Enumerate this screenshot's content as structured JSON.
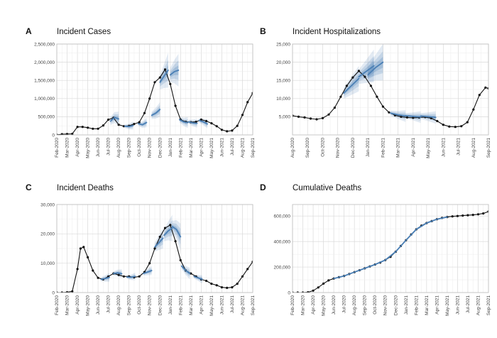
{
  "chart_data": [
    {
      "type": "line",
      "letter": "A",
      "title": "Incident Cases",
      "y_ticks": [
        0,
        500000,
        1000000,
        1500000,
        2000000,
        2500000
      ],
      "y_tick_labels": [
        "0",
        "500,000",
        "1,000,000",
        "1,500,000",
        "2,000,000",
        "2,500,000"
      ],
      "ylim": [
        0,
        2500000
      ],
      "x_tick_labels": [
        "Feb-2020",
        "Mar-2020",
        "Apr-2020",
        "May-2020",
        "Jun-2020",
        "Jul-2020",
        "Aug-2020",
        "Sep-2020",
        "Oct-2020",
        "Nov-2020",
        "Dec-2020",
        "Jan-2021",
        "Feb-2021",
        "Mar-2021",
        "Apr-2021",
        "May-2021",
        "Jun-2021",
        "Jul-2021",
        "Aug-2021",
        "Sep-2021"
      ],
      "series": [
        {
          "role": "observed",
          "color": "#111111",
          "x": [
            0,
            0.5,
            1,
            1.5,
            2,
            2.5,
            3,
            3.5,
            4,
            4.5,
            5,
            5.5,
            6,
            6.5,
            7,
            7.5,
            8,
            8.5,
            9,
            9.5,
            10,
            10.5,
            11,
            11.5,
            12,
            12.5,
            13,
            13.5,
            14,
            14.5,
            15,
            15.5,
            16,
            16.5,
            17,
            17.5,
            18,
            18.5,
            19
          ],
          "y": [
            2000,
            20000,
            25000,
            30000,
            220000,
            220000,
            200000,
            170000,
            170000,
            260000,
            420000,
            470000,
            280000,
            240000,
            250000,
            300000,
            350000,
            600000,
            1000000,
            1450000,
            1580000,
            1800000,
            1400000,
            800000,
            420000,
            360000,
            350000,
            360000,
            420000,
            380000,
            320000,
            240000,
            140000,
            100000,
            120000,
            250000,
            550000,
            900000,
            1150000
          ]
        },
        {
          "role": "forecast",
          "color": "#4a7fb5",
          "segments": [
            {
              "x": [
                5.2,
                5.6,
                6.0
              ],
              "y": [
                380000,
                480000,
                440000
              ],
              "spread": [
                110000,
                150000,
                200000
              ]
            },
            {
              "x": [
                6.6,
                7.0,
                7.4
              ],
              "y": [
                240000,
                230000,
                260000
              ],
              "spread": [
                50000,
                80000,
                110000
              ]
            },
            {
              "x": [
                7.9,
                8.3,
                8.7
              ],
              "y": [
                310000,
                280000,
                340000
              ],
              "spread": [
                60000,
                90000,
                130000
              ]
            },
            {
              "x": [
                9.2,
                9.6,
                10.0
              ],
              "y": [
                540000,
                600000,
                700000
              ],
              "spread": [
                100000,
                150000,
                200000
              ]
            },
            {
              "x": [
                10.0,
                10.4,
                10.8
              ],
              "y": [
                1450000,
                1620000,
                1780000
              ],
              "spread": [
                200000,
                330000,
                480000
              ]
            },
            {
              "x": [
                11.0,
                11.4,
                11.8
              ],
              "y": [
                1650000,
                1740000,
                1780000
              ],
              "spread": [
                200000,
                320000,
                450000
              ]
            },
            {
              "x": [
                11.9,
                12.3,
                12.7
              ],
              "y": [
                420000,
                360000,
                340000
              ],
              "spread": [
                80000,
                110000,
                150000
              ]
            },
            {
              "x": [
                12.8,
                13.2,
                13.6
              ],
              "y": [
                360000,
                330000,
                320000
              ],
              "spread": [
                60000,
                90000,
                120000
              ]
            },
            {
              "x": [
                13.8,
                14.2,
                14.6
              ],
              "y": [
                400000,
                360000,
                300000
              ],
              "spread": [
                60000,
                90000,
                120000
              ]
            }
          ]
        }
      ]
    },
    {
      "type": "line",
      "letter": "B",
      "title": "Incident Hospitalizations",
      "y_ticks": [
        5000,
        10000,
        15000,
        20000,
        25000
      ],
      "y_tick_labels": [
        "5,000",
        "10,000",
        "15,000",
        "20,000",
        "25,000"
      ],
      "ylim": [
        0,
        25000
      ],
      "x_tick_labels": [
        "Aug-2020",
        "Sep-2020",
        "Oct-2020",
        "Nov-2020",
        "Dec-2020",
        "Jan-2021",
        "Feb-2021",
        "Mar-2021",
        "Apr-2021",
        "May-2021",
        "Jun-2021",
        "Jul-2021",
        "Aug-2021",
        "Sep-2021"
      ],
      "series": [
        {
          "role": "observed",
          "color": "#111111",
          "x": [
            0,
            0.4,
            0.8,
            1.2,
            1.6,
            2,
            2.4,
            2.8,
            3.2,
            3.6,
            4,
            4.4,
            4.8,
            5.2,
            5.6,
            6,
            6.4,
            6.8,
            7.2,
            7.6,
            8,
            8.4,
            8.8,
            9.2,
            9.6,
            10,
            10.4,
            10.8,
            11.2,
            11.6,
            12,
            12.4,
            12.8,
            13
          ],
          "y": [
            5300,
            5000,
            4800,
            4500,
            4300,
            4600,
            5600,
            7500,
            10500,
            13500,
            15800,
            17600,
            16000,
            13500,
            10500,
            7800,
            6200,
            5400,
            5000,
            4800,
            4700,
            4800,
            4900,
            4600,
            3800,
            2800,
            2300,
            2200,
            2400,
            3500,
            7000,
            11000,
            13000,
            12800
          ]
        },
        {
          "role": "forecast",
          "color": "#4a7fb5",
          "segments": [
            {
              "x": [
                3.4,
                3.9,
                4.4
              ],
              "y": [
                11500,
                13500,
                15500
              ],
              "spread": [
                1500,
                2500,
                3500
              ]
            },
            {
              "x": [
                4.4,
                4.9,
                5.4
              ],
              "y": [
                16000,
                17500,
                19000
              ],
              "spread": [
                2000,
                3200,
                4500
              ]
            },
            {
              "x": [
                5.0,
                5.5,
                6.0
              ],
              "y": [
                16500,
                18500,
                20000
              ],
              "spread": [
                2000,
                3500,
                5000
              ]
            },
            {
              "x": [
                6.5,
                7.0,
                7.5
              ],
              "y": [
                6000,
                5500,
                5200
              ],
              "spread": [
                700,
                1100,
                1600
              ]
            },
            {
              "x": [
                7.5,
                8.0,
                8.5
              ],
              "y": [
                5300,
                5100,
                4900
              ],
              "spread": [
                700,
                1100,
                1600
              ]
            },
            {
              "x": [
                8.5,
                9.0,
                9.5
              ],
              "y": [
                5200,
                5000,
                4800
              ],
              "spread": [
                800,
                1200,
                1700
              ]
            }
          ]
        }
      ]
    },
    {
      "type": "line",
      "letter": "C",
      "title": "Incident Deaths",
      "y_ticks": [
        0,
        10000,
        20000,
        30000
      ],
      "y_tick_labels": [
        "0",
        "10,000",
        "20,000",
        "30,000"
      ],
      "ylim": [
        0,
        30000
      ],
      "x_tick_labels": [
        "Feb-2020",
        "Mar-2020",
        "Apr-2020",
        "May-2020",
        "Jun-2020",
        "Jul-2020",
        "Aug-2020",
        "Sep-2020",
        "Oct-2020",
        "Nov-2020",
        "Dec-2020",
        "Jan-2021",
        "Feb-2021",
        "Mar-2021",
        "Apr-2021",
        "May-2021",
        "Jun-2021",
        "Jul-2021",
        "Aug-2021",
        "Sep-2021"
      ],
      "series": [
        {
          "role": "observed",
          "color": "#111111",
          "x": [
            0,
            0.5,
            1,
            1.5,
            2,
            2.3,
            2.6,
            3,
            3.5,
            4,
            4.5,
            5,
            5.5,
            6,
            6.5,
            7,
            7.5,
            8,
            8.5,
            9,
            9.5,
            10,
            10.5,
            11,
            11.5,
            12,
            12.5,
            13,
            13.5,
            14,
            14.5,
            15,
            15.5,
            16,
            16.5,
            17,
            17.5,
            18,
            18.5,
            19
          ],
          "y": [
            0,
            0,
            100,
            400,
            8000,
            15000,
            15500,
            12000,
            7500,
            5000,
            4500,
            5500,
            6500,
            6000,
            5500,
            5500,
            5200,
            5500,
            7000,
            10000,
            15000,
            19000,
            22000,
            23000,
            17500,
            11000,
            7500,
            6500,
            5500,
            4500,
            4000,
            3000,
            2500,
            1800,
            1600,
            1800,
            3000,
            5500,
            8000,
            10500
          ]
        },
        {
          "role": "forecast",
          "color": "#4a7fb5",
          "segments": [
            {
              "x": [
                4.3,
                4.7,
                5.1
              ],
              "y": [
                4500,
                4800,
                5200
              ],
              "spread": [
                700,
                1100,
                1500
              ]
            },
            {
              "x": [
                5.5,
                5.9,
                6.3
              ],
              "y": [
                6500,
                6700,
                6400
              ],
              "spread": [
                700,
                1100,
                1500
              ]
            },
            {
              "x": [
                6.8,
                7.2,
                7.6
              ],
              "y": [
                5300,
                5200,
                5500
              ],
              "spread": [
                600,
                900,
                1300
              ]
            },
            {
              "x": [
                8.4,
                8.8,
                9.2
              ],
              "y": [
                6500,
                7000,
                7500
              ],
              "spread": [
                700,
                1100,
                1500
              ]
            },
            {
              "x": [
                9.5,
                9.9,
                10.3
              ],
              "y": [
                15500,
                17000,
                18500
              ],
              "spread": [
                1500,
                2500,
                3500
              ]
            },
            {
              "x": [
                10.4,
                10.8,
                11.2
              ],
              "y": [
                19500,
                21000,
                22000
              ],
              "spread": [
                2000,
                3200,
                4500
              ]
            },
            {
              "x": [
                11.2,
                11.6,
                12.0
              ],
              "y": [
                22500,
                21500,
                19000
              ],
              "spread": [
                2000,
                3200,
                4500
              ]
            },
            {
              "x": [
                12.1,
                12.5,
                12.9
              ],
              "y": [
                9000,
                7500,
                6500
              ],
              "spread": [
                1000,
                1500,
                2000
              ]
            },
            {
              "x": [
                13.3,
                13.7,
                14.1
              ],
              "y": [
                5500,
                5000,
                4500
              ],
              "spread": [
                700,
                1000,
                1400
              ]
            }
          ]
        }
      ]
    },
    {
      "type": "line",
      "letter": "D",
      "title": "Cumulative Deaths",
      "y_ticks": [
        0,
        200000,
        400000,
        600000
      ],
      "y_tick_labels": [
        "0",
        "200,000",
        "400,000",
        "600,000"
      ],
      "ylim": [
        0,
        690000
      ],
      "x_tick_labels": [
        "Feb-2020",
        "Mar-2020",
        "Apr-2020",
        "May-2020",
        "Jun-2020",
        "Jul-2020",
        "Aug-2020",
        "Sep-2020",
        "Oct-2020",
        "Nov-2020",
        "Dec-2020",
        "Jan-2021",
        "Feb-2021",
        "Mar-2021",
        "Apr-2021",
        "May-2021",
        "Jun-2021",
        "Jul-2021",
        "Aug-2021",
        "Sep-2021"
      ],
      "series": [
        {
          "role": "observed",
          "color": "#111111",
          "x": [
            0,
            0.5,
            1,
            1.5,
            2,
            2.5,
            3,
            3.5,
            4,
            4.5,
            5,
            5.5,
            6,
            6.5,
            7,
            7.5,
            8,
            8.5,
            9,
            9.5,
            10,
            10.5,
            11,
            11.5,
            12,
            12.5,
            13,
            13.5,
            14,
            14.5,
            15,
            15.5,
            16,
            16.5,
            17,
            17.5,
            18,
            18.5,
            19
          ],
          "y": [
            0,
            0,
            200,
            2000,
            15000,
            40000,
            70000,
            95000,
            110000,
            120000,
            130000,
            145000,
            160000,
            175000,
            190000,
            205000,
            220000,
            235000,
            255000,
            280000,
            320000,
            365000,
            410000,
            455000,
            495000,
            525000,
            545000,
            560000,
            575000,
            585000,
            592000,
            597000,
            600000,
            603000,
            606000,
            609000,
            613000,
            620000,
            635000
          ]
        },
        {
          "role": "forecast",
          "color": "#4a7fb5",
          "segments": [
            {
              "x": [
                4,
                5,
                6,
                7,
                8,
                9,
                10,
                11,
                12,
                13,
                14,
                15
              ],
              "y": [
                110000,
                130000,
                160000,
                190000,
                220000,
                255000,
                320000,
                410000,
                495000,
                545000,
                575000,
                592000
              ],
              "spread": [
                3000,
                3000,
                4000,
                4000,
                5000,
                6000,
                8000,
                9000,
                9000,
                8000,
                7000,
                6000
              ]
            }
          ]
        }
      ]
    }
  ]
}
